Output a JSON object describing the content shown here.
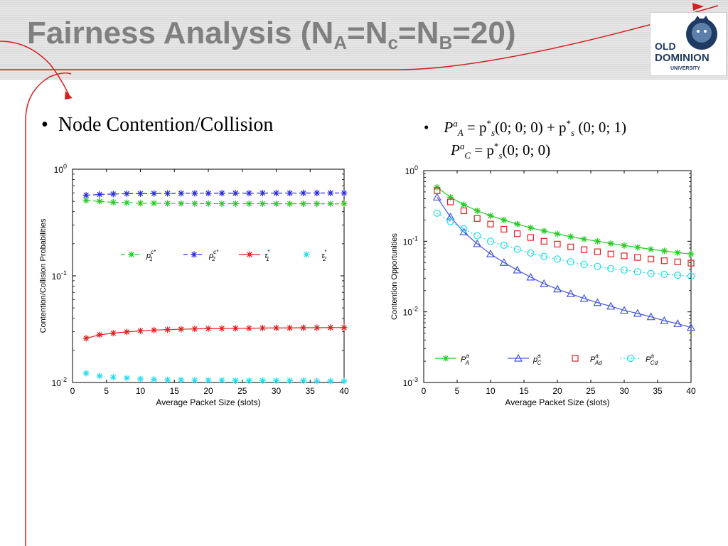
{
  "slide": {
    "title_prefix": "Fairness Analysis (N",
    "title_sub1": "A",
    "title_eq1": "=N",
    "title_sub2": "c",
    "title_eq2": "=N",
    "title_sub3": "B",
    "title_suffix": "=20)",
    "logo_text_top": "OLD",
    "logo_text_main": "DOMINION",
    "logo_text_bottom": "UNIVERSITY",
    "bullet_left": "Node Contention/Collision",
    "bullet_symbol": "•",
    "eq1": {
      "P": "P",
      "sup_a": "a",
      "sub_A": "A",
      "rhs": "= p",
      "star": "*",
      "s": "s",
      "args1": "(0; 0; 0) + p",
      "args2": "(0; 0; 1)"
    },
    "eq2": {
      "P": "P",
      "sup_a": "a",
      "sub_C": "C",
      "rhs": "= p",
      "star": "*",
      "s": "s",
      "args": "(0; 0; 0)"
    }
  },
  "colors": {
    "accent_red": "#d81e1e",
    "title_gray": "#808080",
    "green": "#22cc22",
    "blue": "#2a2ae0",
    "red": "#e02020",
    "cyan": "#22ddee",
    "blue_c": "#4455dd"
  },
  "chart_data": [
    {
      "type": "line",
      "xlabel": "Average Packet Size (slots)",
      "ylabel": "Contention/Collision Probabilities",
      "yscale": "log",
      "xlim": [
        0,
        40
      ],
      "ylim": [
        0.01,
        1
      ],
      "x_ticks": [
        "0",
        "5",
        "10",
        "15",
        "20",
        "25",
        "30",
        "35",
        "40"
      ],
      "y_ticks": [
        {
          "base": "10",
          "exp": "0"
        },
        {
          "base": "10",
          "exp": "-1"
        },
        {
          "base": "10",
          "exp": "-2"
        }
      ],
      "legend": "inside-middle",
      "x": [
        2,
        4,
        6,
        8,
        10,
        12,
        14,
        16,
        18,
        20,
        22,
        24,
        26,
        28,
        30,
        32,
        34,
        36,
        38,
        40
      ],
      "series": [
        {
          "name": "p1 c*",
          "legend_main": "p",
          "legend_sub": "1",
          "legend_sup": "c*",
          "color": "#22cc22",
          "style": "dash",
          "marker": "star",
          "values": [
            0.51,
            0.5,
            0.49,
            0.485,
            0.48,
            0.48,
            0.478,
            0.477,
            0.476,
            0.476,
            0.475,
            0.475,
            0.475,
            0.475,
            0.474,
            0.474,
            0.474,
            0.474,
            0.474,
            0.474
          ]
        },
        {
          "name": "p2 c*",
          "legend_main": "p",
          "legend_sub": "2",
          "legend_sup": "c*",
          "color": "#2a2ae0",
          "style": "dash",
          "marker": "star",
          "values": [
            0.57,
            0.58,
            0.585,
            0.59,
            0.59,
            0.592,
            0.593,
            0.594,
            0.595,
            0.595,
            0.596,
            0.596,
            0.596,
            0.597,
            0.597,
            0.597,
            0.598,
            0.598,
            0.598,
            0.598
          ]
        },
        {
          "name": "τ1*",
          "legend_main": "τ",
          "legend_sub": "1",
          "legend_sup": "*",
          "color": "#e02020",
          "style": "solid",
          "marker": "star",
          "values": [
            0.026,
            0.028,
            0.029,
            0.0298,
            0.0305,
            0.031,
            0.0313,
            0.0316,
            0.0318,
            0.032,
            0.0321,
            0.0322,
            0.0323,
            0.0324,
            0.0325,
            0.0325,
            0.0326,
            0.0326,
            0.0327,
            0.0327
          ]
        },
        {
          "name": "τ2*",
          "legend_main": "τ",
          "legend_sub": "2",
          "legend_sup": "*",
          "color": "#22ddee",
          "style": "none",
          "marker": "star",
          "values": [
            0.0122,
            0.0115,
            0.0112,
            0.011,
            0.0108,
            0.0107,
            0.0106,
            0.0106,
            0.0105,
            0.0105,
            0.0105,
            0.0104,
            0.0104,
            0.0104,
            0.0104,
            0.0104,
            0.0104,
            0.0103,
            0.0103,
            0.0103
          ]
        }
      ]
    },
    {
      "type": "line",
      "xlabel": "Average Packet Size (slots)",
      "ylabel": "Contention Opportunities",
      "yscale": "log",
      "xlim": [
        0,
        40
      ],
      "ylim": [
        0.001,
        1
      ],
      "x_ticks": [
        "0",
        "5",
        "10",
        "15",
        "20",
        "25",
        "30",
        "35",
        "40"
      ],
      "y_ticks": [
        {
          "base": "10",
          "exp": "0"
        },
        {
          "base": "10",
          "exp": "-1"
        },
        {
          "base": "10",
          "exp": "-2"
        },
        {
          "base": "10",
          "exp": "-3"
        }
      ],
      "legend": "bottom",
      "x": [
        2,
        4,
        6,
        8,
        10,
        12,
        14,
        16,
        18,
        20,
        22,
        24,
        26,
        28,
        30,
        32,
        34,
        36,
        38,
        40
      ],
      "series": [
        {
          "name": "P A a",
          "legend_main": "P",
          "legend_sub": "A",
          "legend_sup": "a",
          "color": "#22cc22",
          "style": "solid",
          "marker": "star",
          "values": [
            0.58,
            0.42,
            0.33,
            0.27,
            0.23,
            0.2,
            0.175,
            0.155,
            0.14,
            0.127,
            0.116,
            0.107,
            0.1,
            0.093,
            0.087,
            0.082,
            0.077,
            0.073,
            0.069,
            0.066
          ]
        },
        {
          "name": "p C a",
          "legend_main": "p",
          "legend_sub": "C",
          "legend_sup": "a",
          "color": "#4455dd",
          "style": "solid",
          "marker": "triangle",
          "values": [
            0.42,
            0.22,
            0.135,
            0.092,
            0.066,
            0.05,
            0.039,
            0.031,
            0.025,
            0.021,
            0.018,
            0.0155,
            0.0135,
            0.012,
            0.0105,
            0.0095,
            0.0085,
            0.0075,
            0.0068,
            0.006
          ]
        },
        {
          "name": "P Ad a",
          "legend_main": "P",
          "legend_sub": "Ad",
          "legend_sup": "a",
          "color": "#e02020",
          "style": "none",
          "marker": "square",
          "values": [
            0.52,
            0.36,
            0.27,
            0.21,
            0.175,
            0.148,
            0.128,
            0.113,
            0.1,
            0.091,
            0.083,
            0.076,
            0.071,
            0.066,
            0.062,
            0.059,
            0.056,
            0.053,
            0.051,
            0.049
          ]
        },
        {
          "name": "P Cd a",
          "legend_main": "P",
          "legend_sub": "Cd",
          "legend_sup": "a",
          "color": "#22ddee",
          "style": "dot",
          "marker": "circle",
          "values": [
            0.25,
            0.19,
            0.15,
            0.12,
            0.1,
            0.088,
            0.077,
            0.068,
            0.061,
            0.056,
            0.051,
            0.047,
            0.044,
            0.041,
            0.039,
            0.037,
            0.035,
            0.034,
            0.033,
            0.032
          ]
        }
      ]
    }
  ]
}
